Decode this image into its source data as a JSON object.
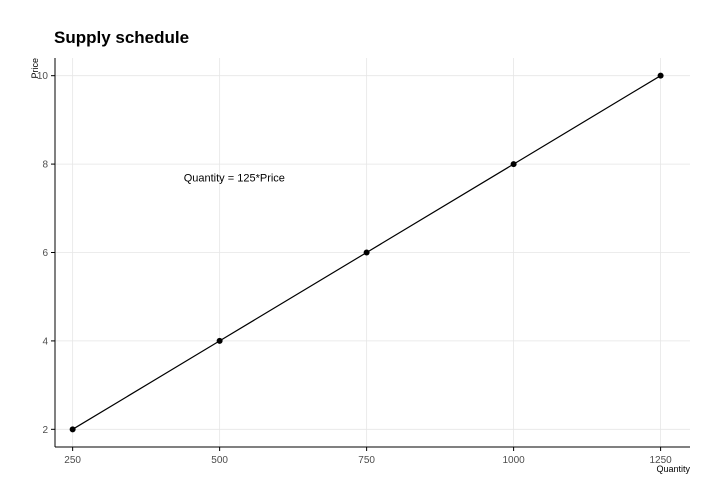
{
  "chart_data": {
    "type": "line",
    "title": "Supply schedule",
    "xlabel": "Quantity",
    "ylabel": "Price",
    "x": [
      250,
      500,
      750,
      1000,
      1250
    ],
    "series": [
      {
        "values": [
          2,
          4,
          6,
          8,
          10
        ]
      }
    ],
    "xlim": [
      220,
      1300
    ],
    "ylim": [
      1.6,
      10.4
    ],
    "xticks": [
      250,
      500,
      750,
      1000,
      1250
    ],
    "yticks": [
      2,
      4,
      6,
      8,
      10
    ],
    "grid": true,
    "annotation": {
      "text": "Quantity = 125*Price",
      "x": 525,
      "y": 7.7
    },
    "colors": {
      "line": "#000000",
      "grid": "#e6e6e6",
      "tick_text": "#4d4d4d"
    }
  }
}
